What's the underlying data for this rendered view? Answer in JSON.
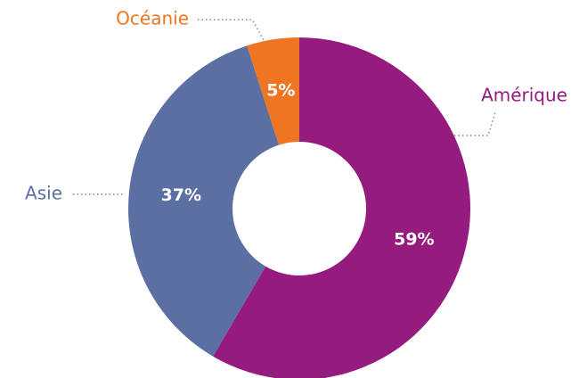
{
  "chart_data": {
    "type": "pie",
    "categories": [
      "Amérique",
      "Asie",
      "Océanie"
    ],
    "values": [
      59,
      37,
      5
    ],
    "value_labels": [
      "59%",
      "37%",
      "5%"
    ],
    "colors": [
      "#951b7f",
      "#5b6fa3",
      "#ef7523"
    ]
  }
}
